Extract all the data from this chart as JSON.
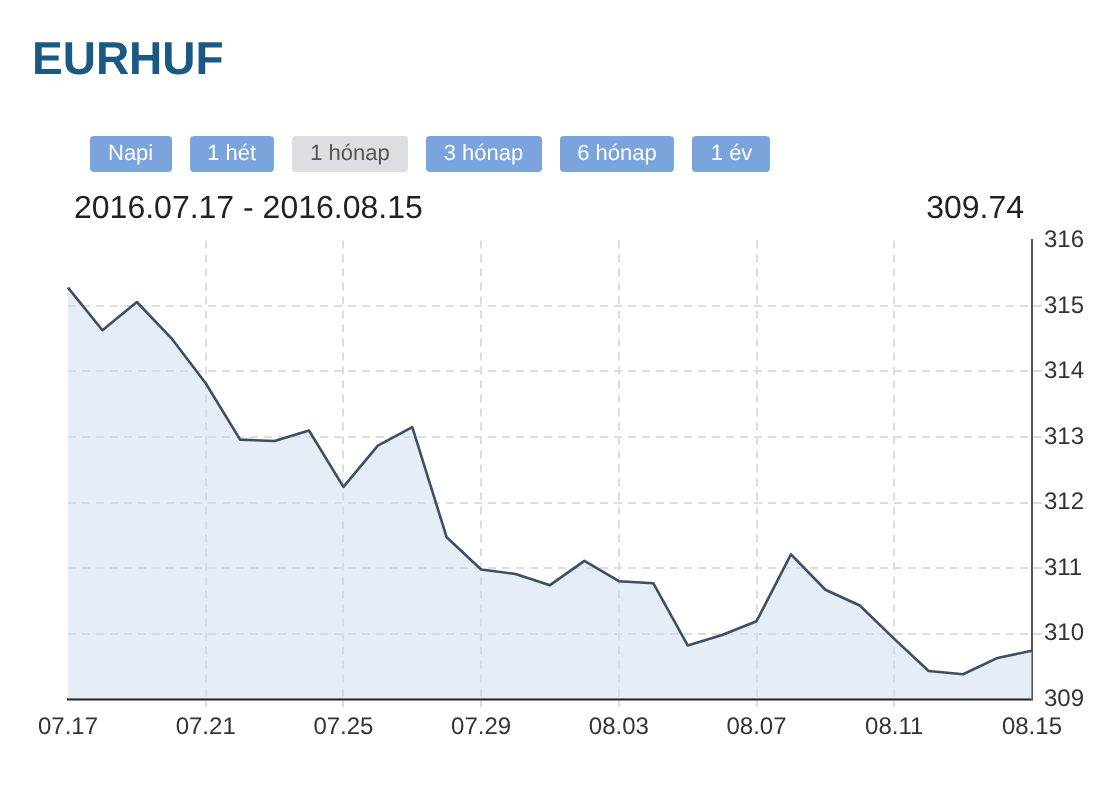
{
  "chart_data": {
    "type": "area",
    "title": "EURHUF",
    "subtitle": "2016.07.17 - 2016.08.15",
    "annotations": [
      "Napi",
      "1 hét",
      "1 hónap",
      "3 hónap",
      "6 hónap",
      "1 év",
      "309.74"
    ],
    "categories": [
      "07.17",
      null,
      null,
      null,
      "07.21",
      null,
      null,
      null,
      "07.25",
      null,
      null,
      null,
      "07.29",
      null,
      null,
      null,
      "08.03",
      null,
      null,
      null,
      "08.07",
      null,
      null,
      null,
      "08.11",
      null,
      null,
      null,
      "08.15"
    ],
    "series": [
      {
        "color": "#3d4f62",
        "values": [
          315.28,
          314.63,
          315.06,
          314.51,
          313.82,
          312.96,
          312.94,
          313.1,
          312.24,
          312.87,
          313.15,
          311.47,
          310.98,
          310.91,
          310.74,
          311.11,
          310.8,
          310.77,
          309.82,
          309.98,
          310.19,
          311.21,
          310.67,
          310.43,
          309.92,
          309.43,
          309.38,
          309.63,
          309.74
        ]
      }
    ],
    "ylim": [
      309,
      316
    ],
    "yticks": [
      309,
      310,
      311,
      312,
      313,
      314,
      315,
      316
    ],
    "grid": true,
    "legend": false,
    "marker": "none"
  }
}
